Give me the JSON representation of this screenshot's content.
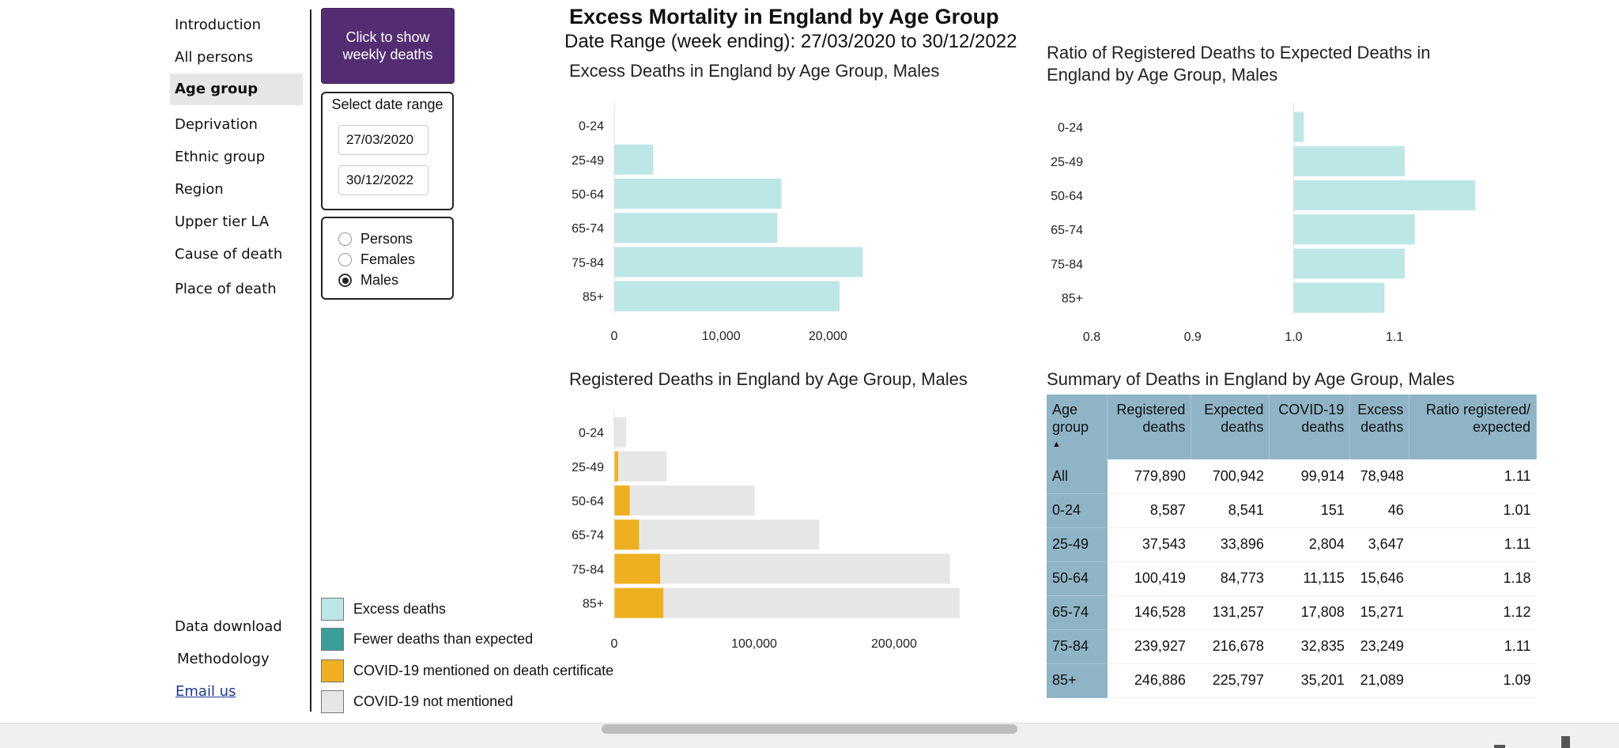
{
  "nav": {
    "items": [
      {
        "label": "Introduction"
      },
      {
        "label": "All persons"
      },
      {
        "label": "Age group"
      },
      {
        "label": "Deprivation"
      },
      {
        "label": "Ethnic group"
      },
      {
        "label": "Region"
      },
      {
        "label": "Upper tier LA"
      },
      {
        "label": "Cause of death"
      },
      {
        "label": "Place of death"
      }
    ],
    "data_download": "Data download",
    "methodology": "Methodology",
    "email": "Email us"
  },
  "controls": {
    "weekly_button": "Click to show weekly deaths",
    "date_range_title": "Select date range",
    "start_date": "27/03/2020",
    "end_date": "30/12/2022",
    "options": [
      "Persons",
      "Females",
      "Males"
    ],
    "selected": "Males"
  },
  "legend": {
    "items": [
      {
        "label": "Excess deaths",
        "color": "#bde6e6"
      },
      {
        "label": "Fewer deaths than expected",
        "color": "#3a9e9b"
      },
      {
        "label": "COVID-19 mentioned on death certificate",
        "color": "#eeb020"
      },
      {
        "label": "COVID-19 not mentioned",
        "color": "#e6e6e6"
      }
    ]
  },
  "page": {
    "title": "Excess Mortality in England by Age Group",
    "subtitle": "Date Range (week ending): 27/03/2020 to 30/12/2022"
  },
  "chart_data": [
    {
      "type": "bar",
      "orientation": "horizontal",
      "title": "Excess Deaths in England by Age Group, Males",
      "categories": [
        "0-24",
        "25-49",
        "50-64",
        "65-74",
        "75-84",
        "85+"
      ],
      "values": [
        46,
        3647,
        15646,
        15271,
        23249,
        21089
      ],
      "xlim": [
        0,
        27000
      ],
      "xticks": [
        0,
        10000,
        20000
      ],
      "xtick_labels": [
        "0",
        "10,000",
        "20,000"
      ],
      "color": "#bde6e6"
    },
    {
      "type": "bar",
      "orientation": "horizontal",
      "title": "Ratio of Registered Deaths to Expected Deaths in England by Age Group, Males",
      "categories": [
        "0-24",
        "25-49",
        "50-64",
        "65-74",
        "75-84",
        "85+"
      ],
      "values": [
        1.01,
        1.11,
        1.18,
        1.12,
        1.11,
        1.09
      ],
      "baseline": 1.0,
      "xlim": [
        0.8,
        1.28
      ],
      "xticks": [
        0.8,
        0.9,
        1.0,
        1.1
      ],
      "xtick_labels": [
        "0.8",
        "0.9",
        "1.0",
        "1.1"
      ],
      "color": "#bde6e6"
    },
    {
      "type": "bar",
      "orientation": "horizontal",
      "stacked": true,
      "title": "Registered Deaths in England by Age Group, Males",
      "categories": [
        "0-24",
        "25-49",
        "50-64",
        "65-74",
        "75-84",
        "85+"
      ],
      "series": [
        {
          "name": "COVID-19 mentioned on death certificate",
          "values": [
            151,
            2804,
            11115,
            17808,
            32835,
            35201
          ],
          "color": "#eeb020"
        },
        {
          "name": "COVID-19 not mentioned",
          "values": [
            8436,
            34739,
            89304,
            128720,
            207092,
            211685
          ],
          "color": "#e6e6e6"
        }
      ],
      "xlim": [
        0,
        265000
      ],
      "xticks": [
        0,
        100000,
        200000
      ],
      "xtick_labels": [
        "0",
        "100,000",
        "200,000"
      ]
    },
    {
      "type": "table",
      "title": "Summary of Deaths in England by Age Group, Males",
      "columns": [
        "Age group",
        "Registered deaths",
        "Expected deaths",
        "COVID-19 deaths",
        "Excess deaths",
        "Ratio registered/ expected"
      ],
      "rows": [
        [
          "All",
          "779,890",
          "700,942",
          "99,914",
          "78,948",
          "1.11"
        ],
        [
          "0-24",
          "8,587",
          "8,541",
          "151",
          "46",
          "1.01"
        ],
        [
          "25-49",
          "37,543",
          "33,896",
          "2,804",
          "3,647",
          "1.11"
        ],
        [
          "50-64",
          "100,419",
          "84,773",
          "11,115",
          "15,646",
          "1.18"
        ],
        [
          "65-74",
          "146,528",
          "131,257",
          "17,808",
          "15,271",
          "1.12"
        ],
        [
          "75-84",
          "239,927",
          "216,678",
          "32,835",
          "23,249",
          "1.11"
        ],
        [
          "85+",
          "246,886",
          "225,797",
          "35,201",
          "21,089",
          "1.09"
        ]
      ]
    }
  ]
}
